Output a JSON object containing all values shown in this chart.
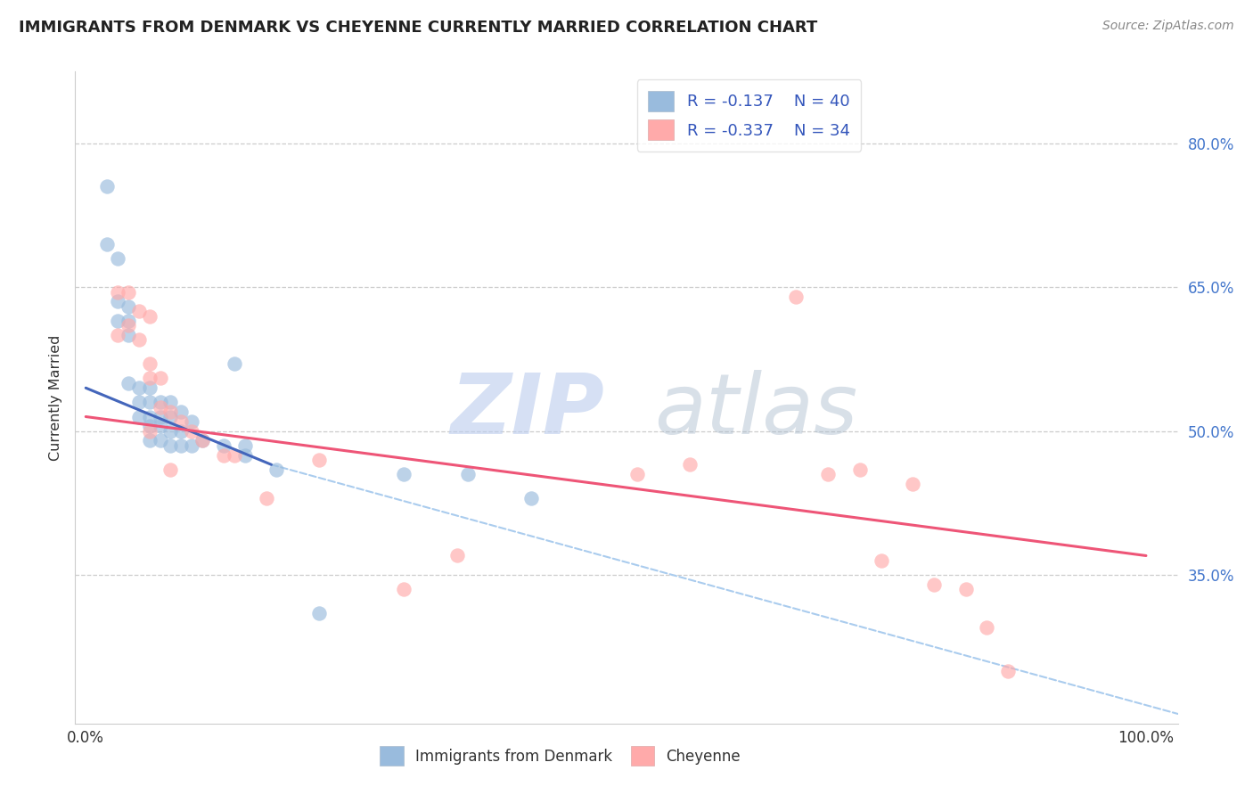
{
  "title": "IMMIGRANTS FROM DENMARK VS CHEYENNE CURRENTLY MARRIED CORRELATION CHART",
  "source": "Source: ZipAtlas.com",
  "ylabel": "Currently Married",
  "ytick_vals": [
    0.35,
    0.5,
    0.65,
    0.8
  ],
  "ytick_labels": [
    "35.0%",
    "50.0%",
    "65.0%",
    "80.0%"
  ],
  "xtick_vals": [
    0.0,
    1.0
  ],
  "xtick_labels": [
    "0.0%",
    "100.0%"
  ],
  "xlim": [
    -0.01,
    1.03
  ],
  "ylim": [
    0.195,
    0.875
  ],
  "legend_r1": "R = -0.137",
  "legend_n1": "N = 40",
  "legend_r2": "R = -0.337",
  "legend_n2": "N = 34",
  "color_blue": "#99BBDD",
  "color_pink": "#FFAAAA",
  "color_blue_line": "#4466BB",
  "color_pink_line": "#EE5577",
  "color_dashed": "#AACCEE",
  "blue_scatter_x": [
    0.02,
    0.02,
    0.03,
    0.03,
    0.03,
    0.04,
    0.04,
    0.04,
    0.04,
    0.05,
    0.05,
    0.05,
    0.06,
    0.06,
    0.06,
    0.06,
    0.06,
    0.07,
    0.07,
    0.07,
    0.07,
    0.08,
    0.08,
    0.08,
    0.08,
    0.09,
    0.09,
    0.09,
    0.1,
    0.1,
    0.11,
    0.13,
    0.15,
    0.15,
    0.18,
    0.22,
    0.36,
    0.42,
    0.14,
    0.3
  ],
  "blue_scatter_y": [
    0.755,
    0.695,
    0.68,
    0.635,
    0.615,
    0.63,
    0.615,
    0.6,
    0.55,
    0.545,
    0.53,
    0.515,
    0.545,
    0.53,
    0.515,
    0.505,
    0.49,
    0.53,
    0.515,
    0.505,
    0.49,
    0.53,
    0.515,
    0.5,
    0.485,
    0.52,
    0.5,
    0.485,
    0.51,
    0.485,
    0.49,
    0.485,
    0.475,
    0.485,
    0.46,
    0.31,
    0.455,
    0.43,
    0.57,
    0.455
  ],
  "pink_scatter_x": [
    0.03,
    0.04,
    0.04,
    0.05,
    0.05,
    0.06,
    0.06,
    0.07,
    0.07,
    0.08,
    0.09,
    0.1,
    0.11,
    0.13,
    0.14,
    0.17,
    0.22,
    0.3,
    0.35,
    0.52,
    0.57,
    0.67,
    0.7,
    0.73,
    0.75,
    0.78,
    0.8,
    0.83,
    0.85,
    0.87,
    0.03,
    0.06,
    0.06,
    0.08
  ],
  "pink_scatter_y": [
    0.645,
    0.645,
    0.61,
    0.625,
    0.595,
    0.57,
    0.555,
    0.555,
    0.525,
    0.52,
    0.51,
    0.5,
    0.49,
    0.475,
    0.475,
    0.43,
    0.47,
    0.335,
    0.37,
    0.455,
    0.465,
    0.64,
    0.455,
    0.46,
    0.365,
    0.445,
    0.34,
    0.335,
    0.295,
    0.25,
    0.6,
    0.62,
    0.5,
    0.46
  ],
  "blue_line_x": [
    0.0,
    0.175
  ],
  "blue_line_y": [
    0.545,
    0.465
  ],
  "pink_line_x": [
    0.0,
    1.0
  ],
  "pink_line_y": [
    0.515,
    0.37
  ],
  "dashed_line_x": [
    0.175,
    1.03
  ],
  "dashed_line_y": [
    0.465,
    0.205
  ]
}
